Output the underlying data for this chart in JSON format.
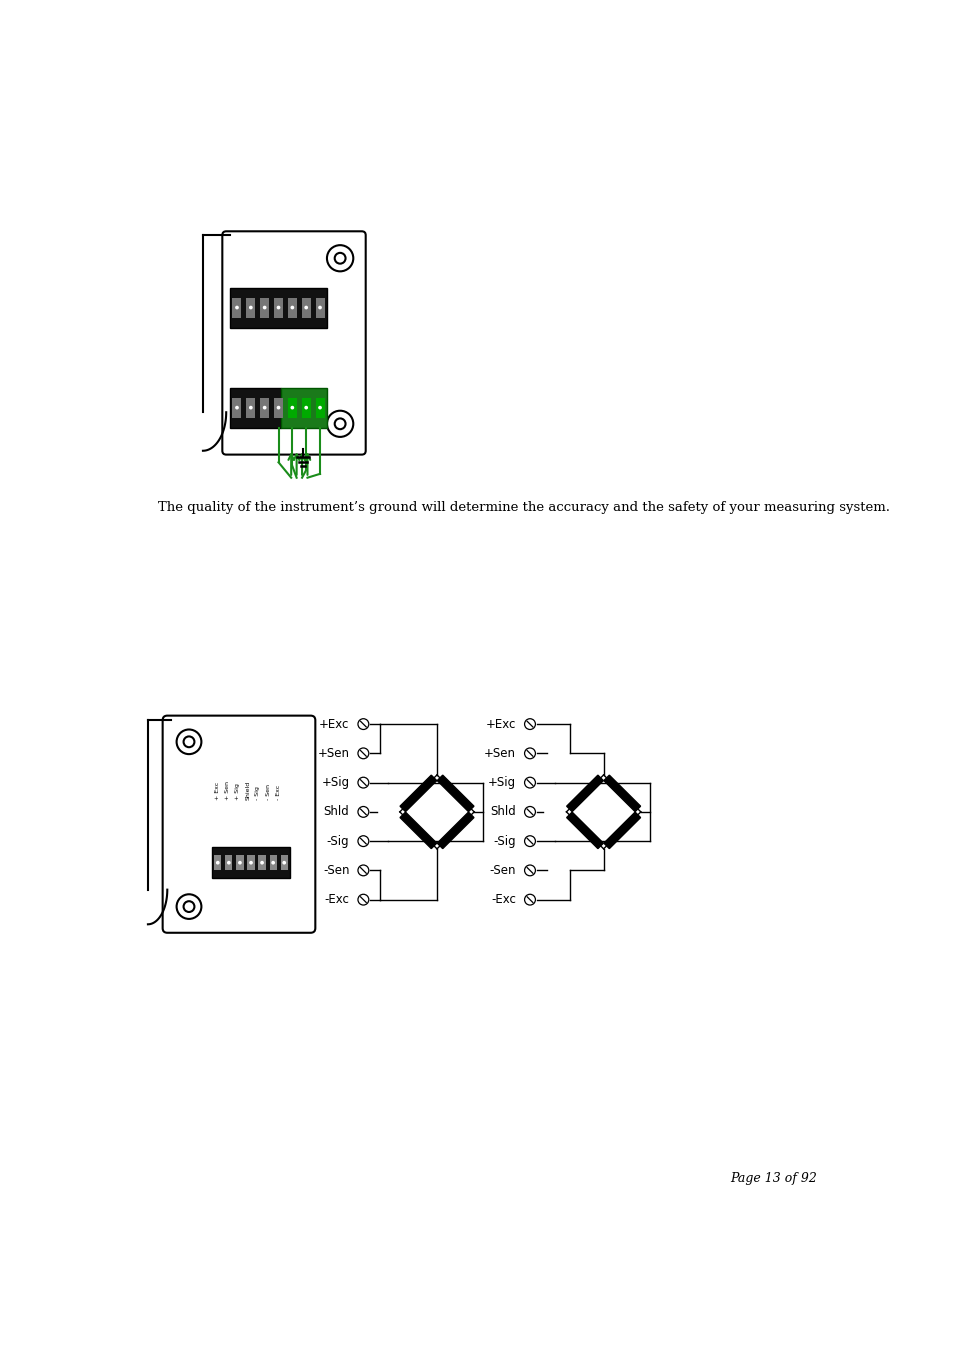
{
  "bg_color": "#ffffff",
  "text_color": "#000000",
  "green_color": "#1a8c1a",
  "body_text": "The quality of the instrument’s ground will determine the accuracy and the safety of your measuring system.",
  "page_text": "Page 13 of 92",
  "term_labels": [
    "+Exc",
    "+Sen",
    "+Sig",
    "Shld",
    "-Sig",
    "-Sen",
    "-Exc"
  ],
  "device1_labels": [
    "+ Exc",
    "+ Sen",
    "+ Sig",
    "Shield",
    "- Sig",
    "- Sen",
    "- Exc"
  ]
}
